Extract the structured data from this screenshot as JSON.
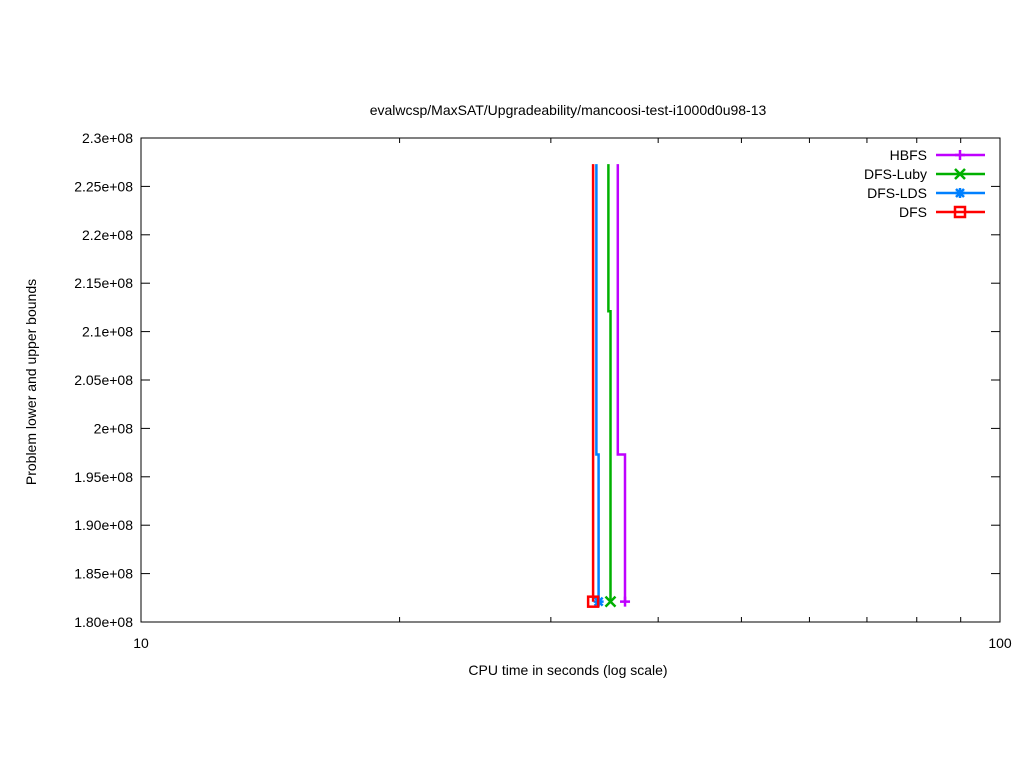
{
  "chart_data": {
    "type": "line",
    "title": "evalwcsp/MaxSAT/Upgradeability/mancoosi-test-i1000d0u98-13",
    "xlabel": "CPU time in seconds (log scale)",
    "ylabel": "Problem lower and upper bounds",
    "xscale": "log",
    "xlim": [
      10,
      100
    ],
    "ylim": [
      180000000,
      230000000
    ],
    "xticks": [
      {
        "v": 10,
        "label": "10"
      },
      {
        "v": 100,
        "label": "100"
      }
    ],
    "yticks": [
      {
        "v": 180000000,
        "label": "1.80e+08"
      },
      {
        "v": 185000000,
        "label": "1.85e+08"
      },
      {
        "v": 190000000,
        "label": "1.90e+08"
      },
      {
        "v": 195000000,
        "label": "1.95e+08"
      },
      {
        "v": 200000000,
        "label": "2e+08"
      },
      {
        "v": 205000000,
        "label": "2.05e+08"
      },
      {
        "v": 210000000,
        "label": "2.1e+08"
      },
      {
        "v": 215000000,
        "label": "2.15e+08"
      },
      {
        "v": 220000000,
        "label": "2.2e+08"
      },
      {
        "v": 225000000,
        "label": "2.25e+08"
      },
      {
        "v": 230000000,
        "label": "2.3e+08"
      }
    ],
    "grid": false,
    "legend_position": "top-right",
    "series": [
      {
        "name": "HBFS",
        "color": "#bf00ff",
        "marker": "plus",
        "points": [
          [
            35.9,
            227300000
          ],
          [
            35.9,
            197300000
          ],
          [
            36.6,
            197300000
          ],
          [
            36.6,
            182100000
          ]
        ]
      },
      {
        "name": "DFS-Luby",
        "color": "#00b000",
        "marker": "x",
        "points": [
          [
            35.0,
            227300000
          ],
          [
            35.0,
            212100000
          ],
          [
            35.2,
            212100000
          ],
          [
            35.2,
            182100000
          ]
        ]
      },
      {
        "name": "DFS-LDS",
        "color": "#0080ff",
        "marker": "star",
        "points": [
          [
            33.9,
            227300000
          ],
          [
            33.9,
            197300000
          ],
          [
            34.1,
            197300000
          ],
          [
            34.1,
            182100000
          ]
        ]
      },
      {
        "name": "DFS",
        "color": "#ff0000",
        "marker": "square",
        "points": [
          [
            33.6,
            227300000
          ],
          [
            33.6,
            182100000
          ]
        ]
      }
    ]
  }
}
